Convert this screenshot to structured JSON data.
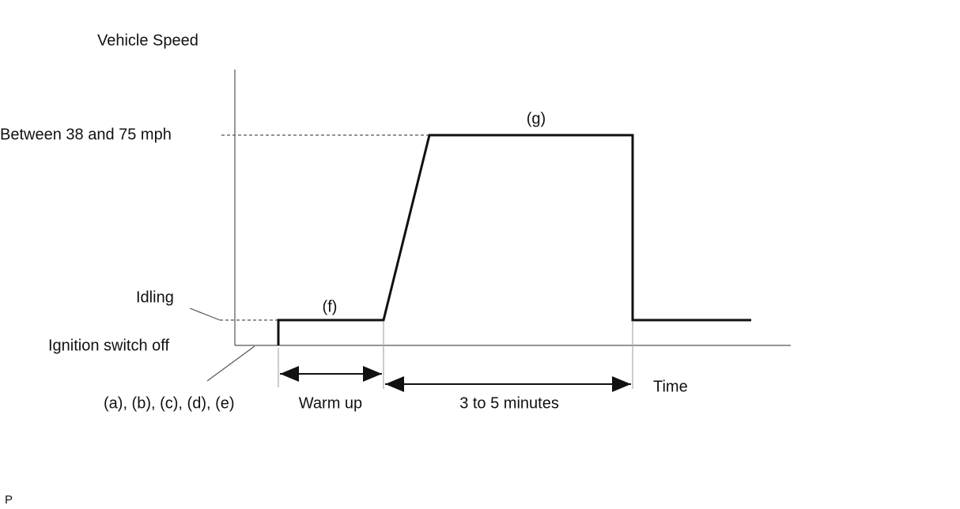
{
  "labels": {
    "y_axis": "Vehicle Speed",
    "high_speed": "Between 38 and 75 mph",
    "step_g": "(g)",
    "idling": "Idling",
    "step_f": "(f)",
    "ignition_off": "Ignition switch off",
    "steps_a_to_e": "(a), (b), (c), (d), (e)",
    "warm_up": "Warm up",
    "duration": "3 to 5 minutes",
    "x_axis": "Time",
    "footer": "P"
  }
}
